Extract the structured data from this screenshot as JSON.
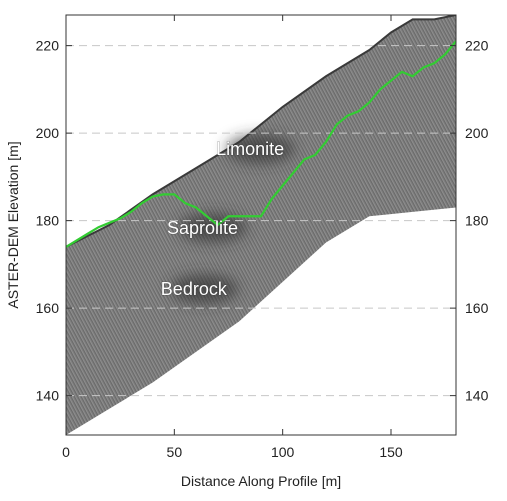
{
  "chart_data": {
    "type": "line",
    "title": "",
    "xlabel": "Distance Along Profile [m]",
    "ylabel": "ASTER-DEM Elevation [m]",
    "xlim": [
      0,
      180
    ],
    "ylim": [
      131,
      227
    ],
    "x_ticks": [
      0,
      50,
      100,
      150
    ],
    "y_ticks": [
      140,
      160,
      180,
      200,
      220
    ],
    "grid": "horizontal dashed",
    "secondary_y_axis": "mirrored right",
    "background": "GPR radargram",
    "zone_labels": [
      {
        "text": "Limonite",
        "x": 85,
        "y": 195
      },
      {
        "text": "Saprolite",
        "x": 63,
        "y": 177
      },
      {
        "text": "Bedrock",
        "x": 59,
        "y": 163
      }
    ],
    "series": [
      {
        "name": "",
        "color": "#33cc33",
        "x": [
          0,
          5,
          10,
          15,
          20,
          25,
          30,
          35,
          40,
          45,
          50,
          55,
          60,
          65,
          70,
          75,
          80,
          85,
          90,
          95,
          100,
          105,
          110,
          115,
          120,
          125,
          130,
          135,
          140,
          145,
          150,
          155,
          160,
          165,
          170,
          175,
          180
        ],
        "values": [
          174,
          175.5,
          177,
          178.5,
          179.5,
          180.5,
          182,
          184,
          185.5,
          186,
          186,
          184,
          183,
          181,
          179,
          181,
          181,
          181,
          181,
          185,
          188,
          191,
          194,
          195,
          198,
          202,
          204,
          205,
          207,
          210,
          212,
          214,
          213,
          215,
          216,
          218,
          221
        ]
      }
    ],
    "surface_top": {
      "x": [
        0,
        20,
        40,
        60,
        80,
        100,
        120,
        140,
        150,
        160,
        170,
        180
      ],
      "values": [
        174,
        179,
        186,
        192,
        198,
        206,
        213,
        219,
        223,
        226,
        226,
        227
      ]
    },
    "radargram_bottom": {
      "x": [
        0,
        20,
        40,
        60,
        80,
        100,
        120,
        140,
        160,
        180
      ],
      "values": [
        131,
        137,
        143,
        150,
        157,
        166,
        175,
        181,
        182,
        183
      ]
    }
  }
}
